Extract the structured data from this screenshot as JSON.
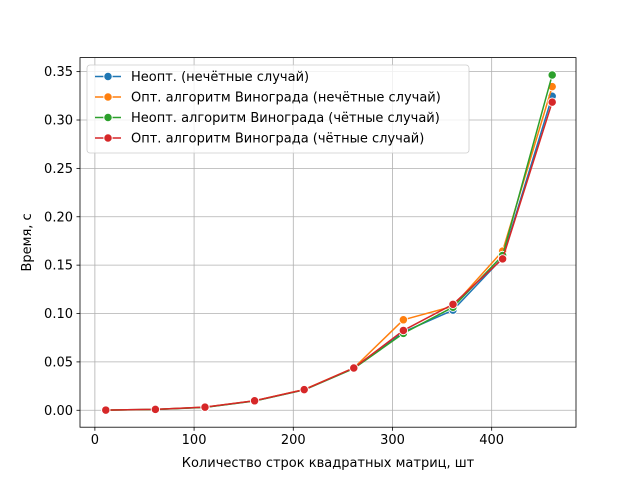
{
  "chart_data": {
    "type": "line",
    "title": "",
    "xlabel": "Количество строк квадратных матриц, шт",
    "ylabel": "Время, с",
    "xlim": [
      -15,
      485
    ],
    "ylim": [
      -0.0175,
      0.3645
    ],
    "xticks": [
      0,
      100,
      200,
      300,
      400
    ],
    "xtick_labels": [
      "0",
      "100",
      "200",
      "300",
      "400"
    ],
    "yticks": [
      0.0,
      0.05,
      0.1,
      0.15,
      0.2,
      0.25,
      0.3,
      0.35
    ],
    "ytick_labels": [
      "0.00",
      "0.05",
      "0.10",
      "0.15",
      "0.20",
      "0.25",
      "0.30",
      "0.35"
    ],
    "grid": true,
    "legend_position": "top-left",
    "x": [
      11,
      61,
      111,
      161,
      211,
      261,
      311,
      361,
      411,
      461
    ],
    "series": [
      {
        "name": "Неопт. (нечётные случай)",
        "color": "#1f77b4",
        "values": [
          0.0002,
          0.0009,
          0.0031,
          0.0097,
          0.0212,
          0.0434,
          0.0808,
          0.1035,
          0.1575,
          0.3245
        ]
      },
      {
        "name": "Опт. алгоритм Винограда (нечётные случай)",
        "color": "#ff7f0e",
        "values": [
          0.0002,
          0.0009,
          0.0033,
          0.0099,
          0.0215,
          0.0437,
          0.0935,
          0.1075,
          0.1645,
          0.3345
        ]
      },
      {
        "name": "Неопт. алгоритм Винограда (чётные случай)",
        "color": "#2ca02c",
        "values": [
          0.0002,
          0.0008,
          0.003,
          0.0096,
          0.021,
          0.0431,
          0.0795,
          0.1065,
          0.16,
          0.3465
        ]
      },
      {
        "name": "Опт. алгоритм Винограда (чётные случай)",
        "color": "#d62728",
        "values": [
          0.0002,
          0.0009,
          0.0032,
          0.0098,
          0.0213,
          0.0437,
          0.0825,
          0.1095,
          0.1565,
          0.3185
        ]
      }
    ]
  }
}
